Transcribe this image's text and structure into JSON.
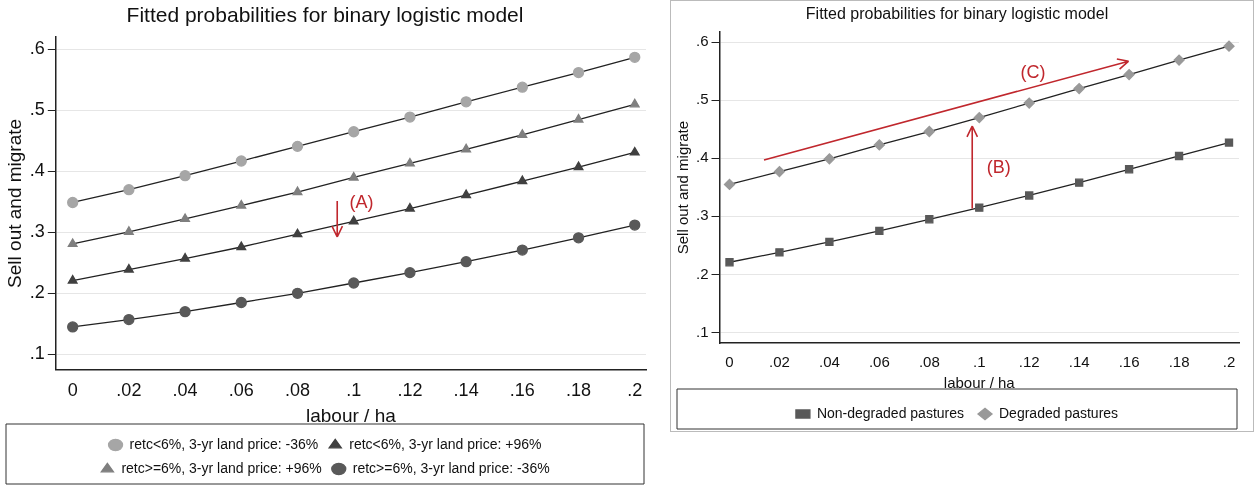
{
  "chart_data": [
    {
      "type": "line",
      "title": "Fitted probabilities for binary logistic model",
      "xlabel": "labour / ha",
      "ylabel": "Sell out and migrate",
      "x": [
        0,
        0.02,
        0.04,
        0.06,
        0.08,
        0.1,
        0.12,
        0.14,
        0.16,
        0.18,
        0.2
      ],
      "xlim": [
        -0.006,
        0.204
      ],
      "xticks": [
        0,
        {
          "value": 0.02,
          "label": ".02"
        },
        {
          "value": 0.04,
          "label": ".04"
        },
        {
          "value": 0.06,
          "label": ".06"
        },
        {
          "value": 0.08,
          "label": ".08"
        },
        {
          "value": 0.1,
          "label": ".1"
        },
        {
          "value": 0.12,
          "label": ".12"
        },
        {
          "value": 0.14,
          "label": ".14"
        },
        {
          "value": 0.16,
          "label": ".16"
        },
        {
          "value": 0.18,
          "label": ".18"
        },
        {
          "value": 0.2,
          "label": ".2"
        }
      ],
      "ylim": [
        0.075,
        0.62
      ],
      "yticks": [
        {
          "value": 0.1,
          "label": ".1"
        },
        {
          "value": 0.2,
          "label": ".2"
        },
        {
          "value": 0.3,
          "label": ".3"
        },
        {
          "value": 0.4,
          "label": ".4"
        },
        {
          "value": 0.5,
          "label": ".5"
        },
        {
          "value": 0.6,
          "label": ".6"
        }
      ],
      "grid": "y",
      "legend": "bottom",
      "series": [
        {
          "name": "retc<6%, 3-yr land price: -36%",
          "color": "#a6a6a6",
          "marker": "circle",
          "values": [
            0.349,
            0.37,
            0.393,
            0.417,
            0.441,
            0.465,
            0.489,
            0.514,
            0.538,
            0.562,
            0.587
          ]
        },
        {
          "name": "retc<6%, 3-yr land price: +96%",
          "color": "#404040",
          "marker": "triangle",
          "values": [
            0.221,
            0.239,
            0.257,
            0.276,
            0.297,
            0.318,
            0.339,
            0.361,
            0.384,
            0.407,
            0.431
          ]
        },
        {
          "name": "retc>=6%, 3-yr land price: +96%",
          "color": "#7f7f7f",
          "marker": "triangle",
          "values": [
            0.281,
            0.301,
            0.322,
            0.344,
            0.366,
            0.39,
            0.413,
            0.436,
            0.46,
            0.485,
            0.51
          ]
        },
        {
          "name": "retc>=6%, 3-yr land price: -36%",
          "color": "#595959",
          "marker": "circle",
          "values": [
            0.145,
            0.157,
            0.17,
            0.185,
            0.2,
            0.217,
            0.234,
            0.252,
            0.271,
            0.291,
            0.312
          ]
        }
      ],
      "annotations": [
        "(A)"
      ]
    },
    {
      "type": "line",
      "title": "Fitted probabilities for binary logistic model",
      "xlabel": "labour / ha",
      "ylabel": "Sell out and migrate",
      "x": [
        0,
        0.02,
        0.04,
        0.06,
        0.08,
        0.1,
        0.12,
        0.14,
        0.16,
        0.18,
        0.2
      ],
      "xlim": [
        -0.004,
        0.204
      ],
      "xticks": [
        0,
        {
          "value": 0.02,
          "label": ".02"
        },
        {
          "value": 0.04,
          "label": ".04"
        },
        {
          "value": 0.06,
          "label": ".06"
        },
        {
          "value": 0.08,
          "label": ".08"
        },
        {
          "value": 0.1,
          "label": ".1"
        },
        {
          "value": 0.12,
          "label": ".12"
        },
        {
          "value": 0.14,
          "label": ".14"
        },
        {
          "value": 0.16,
          "label": ".16"
        },
        {
          "value": 0.18,
          "label": ".18"
        },
        {
          "value": 0.2,
          "label": ".2"
        }
      ],
      "ylim": [
        0.082,
        0.617
      ],
      "yticks": [
        {
          "value": 0.1,
          "label": ".1"
        },
        {
          "value": 0.2,
          "label": ".2"
        },
        {
          "value": 0.3,
          "label": ".3"
        },
        {
          "value": 0.4,
          "label": ".4"
        },
        {
          "value": 0.5,
          "label": ".5"
        },
        {
          "value": 0.6,
          "label": ".6"
        }
      ],
      "grid": "y",
      "legend": "bottom",
      "series": [
        {
          "name": "Non-degraded pastures",
          "color": "#595959",
          "marker": "square",
          "values": [
            0.221,
            0.238,
            0.256,
            0.275,
            0.295,
            0.315,
            0.336,
            0.358,
            0.381,
            0.404,
            0.427
          ]
        },
        {
          "name": "Degraded pastures",
          "color": "#999999",
          "marker": "diamond",
          "values": [
            0.355,
            0.377,
            0.399,
            0.423,
            0.446,
            0.47,
            0.495,
            0.52,
            0.544,
            0.569,
            0.593
          ]
        }
      ],
      "annotations": [
        "(B)",
        "(C)"
      ]
    }
  ]
}
